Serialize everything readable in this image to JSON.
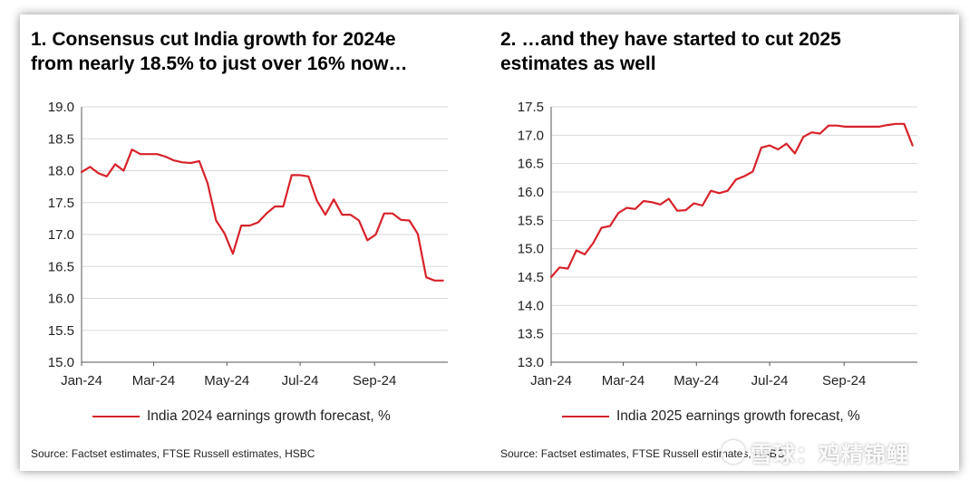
{
  "charts": [
    {
      "title": "1. Consensus cut India growth for 2024e\nfrom nearly 18.5% to just over 16% now…",
      "legend": "India 2024 earnings growth forecast, %",
      "source": "Source: Factset estimates, FTSE Russell estimates, HSBC",
      "line_color": "#d7222a"
    },
    {
      "title": "2. …and they have started to cut 2025\nestimates as well",
      "legend": "India 2025 earnings growth forecast, %",
      "source": "Source: Factset estimates, FTSE Russell estimates, HSBC",
      "line_color": "#d7222a"
    }
  ],
  "watermark": {
    "text": "雪球：鸡精锦鲤",
    "logo_icon": "snowball-logo-icon"
  },
  "chart_data": [
    {
      "type": "line",
      "title": "1. Consensus cut India growth for 2024e from nearly 18.5% to just over 16% now…",
      "xlabel": "",
      "ylabel": "",
      "x_tick_labels": [
        "Jan-24",
        "Mar-24",
        "May-24",
        "Jul-24",
        "Sep-24"
      ],
      "x_range": [
        "Jan-24",
        "Nov-24"
      ],
      "ylim": [
        15.0,
        19.0
      ],
      "y_ticks": [
        "15.0",
        "15.5",
        "16.0",
        "16.5",
        "17.0",
        "17.5",
        "18.0",
        "18.5",
        "19.0"
      ],
      "grid": "horizontal",
      "legend_position": "bottom",
      "series": [
        {
          "name": "India 2024 earnings growth forecast, %",
          "x": [
            "2024-01-01",
            "2024-01-08",
            "2024-01-15",
            "2024-01-22",
            "2024-01-29",
            "2024-02-05",
            "2024-02-12",
            "2024-02-19",
            "2024-02-26",
            "2024-03-04",
            "2024-03-11",
            "2024-03-18",
            "2024-03-25",
            "2024-04-01",
            "2024-04-08",
            "2024-04-15",
            "2024-04-22",
            "2024-04-29",
            "2024-05-06",
            "2024-05-13",
            "2024-05-20",
            "2024-05-27",
            "2024-06-03",
            "2024-06-10",
            "2024-06-17",
            "2024-06-24",
            "2024-07-01",
            "2024-07-08",
            "2024-07-15",
            "2024-07-22",
            "2024-07-29",
            "2024-08-05",
            "2024-08-12",
            "2024-08-19",
            "2024-08-26",
            "2024-09-02",
            "2024-09-09",
            "2024-09-16",
            "2024-09-23",
            "2024-09-30",
            "2024-10-07",
            "2024-10-14",
            "2024-10-21",
            "2024-10-28"
          ],
          "values": [
            17.98,
            18.06,
            17.96,
            17.91,
            18.1,
            18.0,
            18.33,
            18.26,
            18.26,
            18.26,
            18.22,
            18.16,
            18.13,
            18.12,
            18.15,
            17.8,
            17.22,
            17.02,
            16.7,
            17.14,
            17.14,
            17.19,
            17.33,
            17.44,
            17.44,
            17.93,
            17.93,
            17.91,
            17.53,
            17.31,
            17.55,
            17.31,
            17.31,
            17.22,
            16.91,
            17.0,
            17.33,
            17.33,
            17.23,
            17.22,
            17.01,
            16.33,
            16.28,
            16.28
          ]
        }
      ]
    },
    {
      "type": "line",
      "title": "2. …and they have started to cut 2025 estimates as well",
      "xlabel": "",
      "ylabel": "",
      "x_tick_labels": [
        "Jan-24",
        "Mar-24",
        "May-24",
        "Jul-24",
        "Sep-24"
      ],
      "x_range": [
        "Jan-24",
        "Nov-24"
      ],
      "ylim": [
        13.0,
        17.5
      ],
      "y_ticks": [
        "13.0",
        "13.5",
        "14.0",
        "14.5",
        "15.0",
        "15.5",
        "16.0",
        "16.5",
        "17.0",
        "17.5"
      ],
      "grid": "horizontal",
      "legend_position": "bottom",
      "series": [
        {
          "name": "India 2025 earnings growth forecast, %",
          "x": [
            "2024-01-01",
            "2024-01-08",
            "2024-01-15",
            "2024-01-22",
            "2024-01-29",
            "2024-02-05",
            "2024-02-12",
            "2024-02-19",
            "2024-02-26",
            "2024-03-04",
            "2024-03-11",
            "2024-03-18",
            "2024-03-25",
            "2024-04-01",
            "2024-04-08",
            "2024-04-15",
            "2024-04-22",
            "2024-04-29",
            "2024-05-06",
            "2024-05-13",
            "2024-05-20",
            "2024-05-27",
            "2024-06-03",
            "2024-06-10",
            "2024-06-17",
            "2024-06-24",
            "2024-07-01",
            "2024-07-08",
            "2024-07-15",
            "2024-07-22",
            "2024-07-29",
            "2024-08-05",
            "2024-08-12",
            "2024-08-19",
            "2024-08-26",
            "2024-09-02",
            "2024-09-09",
            "2024-09-16",
            "2024-09-23",
            "2024-09-30",
            "2024-10-07",
            "2024-10-14",
            "2024-10-21",
            "2024-10-28"
          ],
          "values": [
            14.5,
            14.67,
            14.65,
            14.97,
            14.9,
            15.1,
            15.37,
            15.4,
            15.63,
            15.72,
            15.7,
            15.84,
            15.82,
            15.78,
            15.88,
            15.67,
            15.68,
            15.8,
            15.76,
            16.02,
            15.98,
            16.02,
            16.22,
            16.28,
            16.36,
            16.78,
            16.82,
            16.75,
            16.85,
            16.68,
            16.97,
            17.05,
            17.03,
            17.17,
            17.17,
            17.15,
            17.15,
            17.15,
            17.15,
            17.15,
            17.18,
            17.2,
            17.2,
            16.82
          ]
        }
      ]
    }
  ]
}
